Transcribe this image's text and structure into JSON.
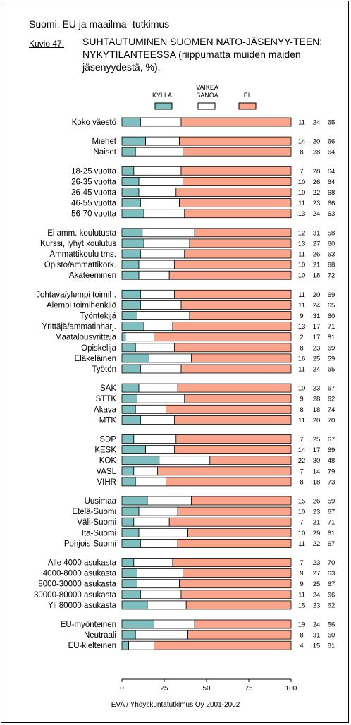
{
  "header": {
    "series_title": "Suomi, EU ja maailma -tutkimus",
    "figure_label": "Kuvio 47.",
    "figure_title": "SUHTAUTUMINEN SUOMEN NATO-JÄSENYY-TEEN: NYKYTILANTEESSA (riippumatta muiden maiden jäsenyydestä, %)."
  },
  "footer": "EVA / Yhdyskuntatutkimus Oy 2001-2002",
  "colors": {
    "yes": "#7fbfbf",
    "undecided": "#ffffff",
    "no": "#fba58d",
    "border": "#000000"
  },
  "chart_data": {
    "type": "bar",
    "orientation": "horizontal",
    "stacked": true,
    "xlim": [
      0,
      100
    ],
    "xticks": [
      "0",
      "25",
      "50",
      "75",
      "100"
    ],
    "legend": [
      "KYLLÄ",
      "VAIKEA SANOA",
      "EI"
    ],
    "legend_position": "top",
    "groups": [
      {
        "rows": [
          {
            "label": "Koko väestö",
            "values": [
              11,
              24,
              65
            ]
          }
        ]
      },
      {
        "rows": [
          {
            "label": "Miehet",
            "values": [
              14,
              20,
              66
            ]
          },
          {
            "label": "Naiset",
            "values": [
              8,
              28,
              64
            ]
          }
        ]
      },
      {
        "rows": [
          {
            "label": "18-25 vuotta",
            "values": [
              7,
              28,
              64
            ]
          },
          {
            "label": "26-35 vuotta",
            "values": [
              10,
              26,
              64
            ]
          },
          {
            "label": "36-45 vuotta",
            "values": [
              10,
              22,
              68
            ]
          },
          {
            "label": "46-55 vuotta",
            "values": [
              11,
              23,
              66
            ]
          },
          {
            "label": "56-70 vuotta",
            "values": [
              13,
              24,
              63
            ]
          }
        ]
      },
      {
        "rows": [
          {
            "label": "Ei amm. koulutusta",
            "values": [
              12,
              31,
              58
            ]
          },
          {
            "label": "Kurssi, lyhyt koulutus",
            "values": [
              13,
              27,
              60
            ]
          },
          {
            "label": "Ammattikoulu tms.",
            "values": [
              11,
              26,
              63
            ]
          },
          {
            "label": "Opisto/ammattikork.",
            "values": [
              10,
              21,
              68
            ]
          },
          {
            "label": "Akateeminen",
            "values": [
              10,
              18,
              72
            ]
          }
        ]
      },
      {
        "rows": [
          {
            "label": "Johtava/ylempi toimih.",
            "values": [
              11,
              20,
              69
            ]
          },
          {
            "label": "Alempi toimihenkilö",
            "values": [
              11,
              24,
              65
            ]
          },
          {
            "label": "Työntekijä",
            "values": [
              9,
              31,
              60
            ]
          },
          {
            "label": "Yrittäjä/ammatinharj.",
            "values": [
              13,
              17,
              71
            ]
          },
          {
            "label": "Maatalousyrittäjä",
            "values": [
              2,
              17,
              81
            ]
          },
          {
            "label": "Opiskelija",
            "values": [
              8,
              23,
              69
            ]
          },
          {
            "label": "Eläkeläinen",
            "values": [
              16,
              25,
              59
            ]
          },
          {
            "label": "Työtön",
            "values": [
              11,
              24,
              65
            ]
          }
        ]
      },
      {
        "rows": [
          {
            "label": "SAK",
            "values": [
              10,
              23,
              67
            ]
          },
          {
            "label": "STTK",
            "values": [
              9,
              28,
              62
            ]
          },
          {
            "label": "Akava",
            "values": [
              8,
              18,
              74
            ]
          },
          {
            "label": "MTK",
            "values": [
              11,
              20,
              70
            ]
          }
        ]
      },
      {
        "rows": [
          {
            "label": "SDP",
            "values": [
              7,
              25,
              67
            ]
          },
          {
            "label": "KESK",
            "values": [
              14,
              17,
              69
            ]
          },
          {
            "label": "KOK",
            "values": [
              22,
              30,
              48
            ]
          },
          {
            "label": "VASL",
            "values": [
              7,
              14,
              79
            ]
          },
          {
            "label": "VIHR",
            "values": [
              8,
              18,
              73
            ]
          }
        ]
      },
      {
        "rows": [
          {
            "label": "Uusimaa",
            "values": [
              15,
              26,
              59
            ]
          },
          {
            "label": "Etelä-Suomi",
            "values": [
              10,
              23,
              67
            ]
          },
          {
            "label": "Väli-Suomi",
            "values": [
              7,
              21,
              71
            ]
          },
          {
            "label": "Itä-Suomi",
            "values": [
              10,
              29,
              61
            ]
          },
          {
            "label": "Pohjois-Suomi",
            "values": [
              11,
              22,
              67
            ]
          }
        ]
      },
      {
        "rows": [
          {
            "label": "Alle 4000 asukasta",
            "values": [
              7,
              23,
              70
            ]
          },
          {
            "label": "4000-8000 asukasta",
            "values": [
              9,
              27,
              63
            ]
          },
          {
            "label": "8000-30000 asukasta",
            "values": [
              9,
              25,
              67
            ]
          },
          {
            "label": "30000-80000 asukasta",
            "values": [
              11,
              24,
              66
            ]
          },
          {
            "label": "Yli 80000 asukasta",
            "values": [
              15,
              23,
              62
            ]
          }
        ]
      },
      {
        "rows": [
          {
            "label": "EU-myönteinen",
            "values": [
              19,
              24,
              56
            ]
          },
          {
            "label": "Neutraali",
            "values": [
              8,
              31,
              60
            ]
          },
          {
            "label": "EU-kielteinen",
            "values": [
              4,
              15,
              81
            ]
          }
        ]
      }
    ]
  }
}
